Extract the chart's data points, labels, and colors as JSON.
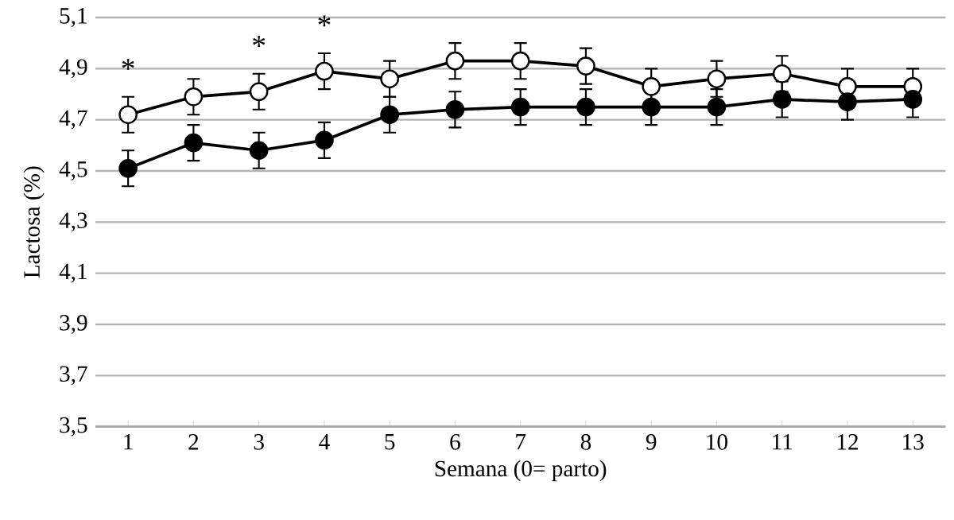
{
  "chart_data": {
    "type": "line",
    "xlabel": "Semana  (0= parto)",
    "ylabel": "Lactosa (%)",
    "categories": [
      "1",
      "2",
      "3",
      "4",
      "5",
      "6",
      "7",
      "8",
      "9",
      "10",
      "11",
      "12",
      "13"
    ],
    "series": [
      {
        "color": "#ffffff",
        "values": [
          4.72,
          4.79,
          4.81,
          4.89,
          4.86,
          4.93,
          4.93,
          4.91,
          4.83,
          4.86,
          4.88,
          4.83,
          4.83
        ],
        "errors": [
          0.07,
          0.07,
          0.07,
          0.07,
          0.07,
          0.07,
          0.07,
          0.07,
          0.07,
          0.07,
          0.07,
          0.07,
          0.07
        ]
      },
      {
        "color": "#000000",
        "values": [
          4.51,
          4.61,
          4.58,
          4.62,
          4.72,
          4.74,
          4.75,
          4.75,
          4.75,
          4.75,
          4.78,
          4.77,
          4.78
        ],
        "errors": [
          0.07,
          0.07,
          0.07,
          0.07,
          0.07,
          0.07,
          0.07,
          0.07,
          0.07,
          0.07,
          0.07,
          0.07,
          0.07
        ]
      }
    ],
    "ylim": [
      3.5,
      5.1
    ],
    "yticks": [
      {
        "value": 3.5,
        "label": "3,5"
      },
      {
        "value": 3.7,
        "label": "3,7"
      },
      {
        "value": 3.9,
        "label": "3,9"
      },
      {
        "value": 4.1,
        "label": "4,1"
      },
      {
        "value": 4.3,
        "label": "4,3"
      },
      {
        "value": 4.5,
        "label": "4,5"
      },
      {
        "value": 4.7,
        "label": "4,7"
      },
      {
        "value": 4.9,
        "label": "4,9"
      },
      {
        "value": 5.1,
        "label": "5,1"
      }
    ],
    "annotations": [
      {
        "text": "*",
        "x": "1",
        "y": 4.72
      },
      {
        "text": "*",
        "x": "3",
        "y": 4.81
      },
      {
        "text": "*",
        "x": "4",
        "y": 4.89
      }
    ],
    "grid": "y",
    "marker": "circle",
    "line_style": "solid"
  }
}
